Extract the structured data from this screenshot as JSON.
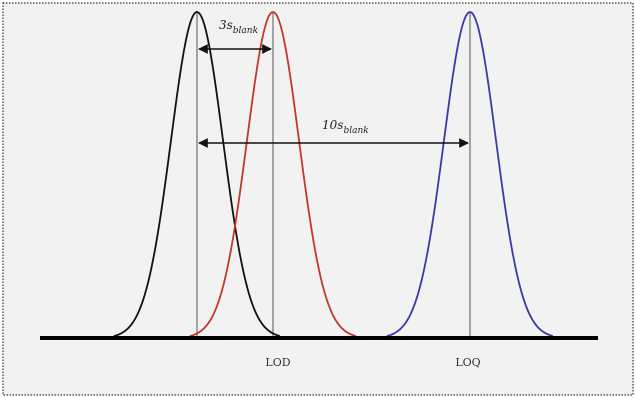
{
  "diagram": {
    "arrow_3s": {
      "main": "3s",
      "sub": "blank"
    },
    "arrow_10s": {
      "main": "10s",
      "sub": "blank"
    },
    "lod_label": "LOD",
    "loq_label": "LOQ",
    "curves": [
      {
        "name": "blank",
        "color": "#111111"
      },
      {
        "name": "LOD",
        "color": "#c0392b"
      },
      {
        "name": "LOQ",
        "color": "#3a3aa6"
      }
    ],
    "colors": {
      "background": "#f2f2f2",
      "frame": "#333333",
      "baseline": "#000000",
      "divider": "#555555",
      "arrow": "#111111"
    }
  }
}
